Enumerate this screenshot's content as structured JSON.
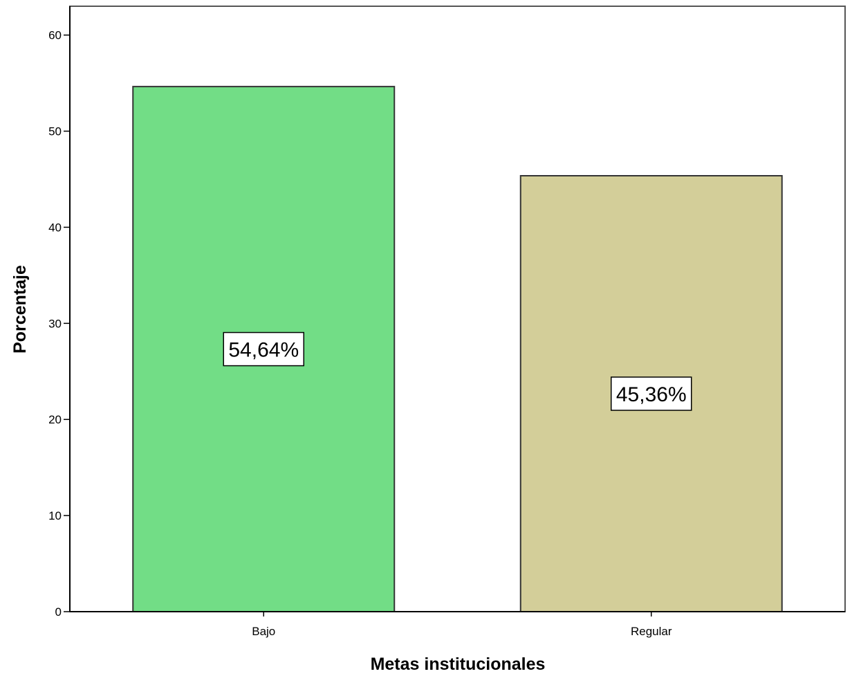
{
  "chart_data": {
    "type": "bar",
    "categories": [
      "Bajo",
      "Regular"
    ],
    "values": [
      54.64,
      45.36
    ],
    "data_labels": [
      "54,64%",
      "45,36%"
    ],
    "colors": [
      "#72DD86",
      "#D3CE99"
    ],
    "xlabel": "Metas institucionales",
    "ylabel": "Porcentaje",
    "ylim": [
      0,
      63
    ],
    "yticks": [
      0,
      10,
      20,
      30,
      40,
      50,
      60
    ],
    "ytick_labels": [
      "0",
      "10",
      "20",
      "30",
      "40",
      "50",
      "60"
    ],
    "grid": false,
    "legend": false
  }
}
